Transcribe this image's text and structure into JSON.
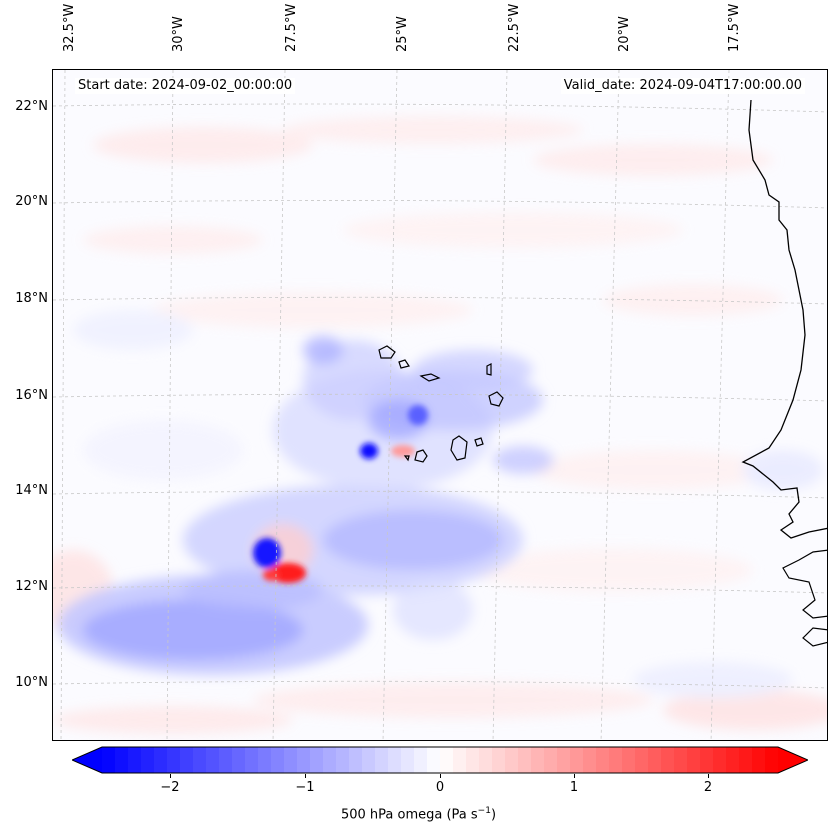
{
  "map": {
    "start_date": "Start date: 2024-09-02_00:00:00",
    "valid_date": "Valid_date: 2024-09-04T17:00:00.00",
    "lat_labels": [
      "22°N",
      "20°N",
      "18°N",
      "16°N",
      "14°N",
      "12°N",
      "10°N"
    ],
    "lon_labels": [
      "32.5°W",
      "30°W",
      "27.5°W",
      "25°W",
      "22.5°W",
      "20°W",
      "17.5°W"
    ],
    "gridlines": true,
    "features": [
      "Cape Verde islands",
      "West African coastline"
    ]
  },
  "colorbar": {
    "ticks": [
      "−2",
      "−1",
      "0",
      "1",
      "2"
    ],
    "range": [
      -2.6,
      2.6
    ],
    "label_prefix": "500 hPa omega (Pa s",
    "label_exponent": "−1",
    "label_suffix": ")",
    "colormap": "bwr",
    "colors": {
      "min": "#0000ff",
      "mid": "#ffffff",
      "max": "#ff0000"
    }
  },
  "chart_data": {
    "type": "heatmap",
    "title": "",
    "variable": "500 hPa omega",
    "units": "Pa s^-1",
    "xlabel": "",
    "ylabel": "",
    "lon_range": [
      "33°W",
      "16°W"
    ],
    "lat_range": [
      "9°N",
      "22.8°N"
    ],
    "colorbar_range": [
      -2.6,
      2.6
    ],
    "features": [
      {
        "name": "strong ascent core",
        "lon": -26.8,
        "lat": 12.5,
        "value": -2.6
      },
      {
        "name": "strong descent core",
        "lon": -26.3,
        "lat": 12.1,
        "value": 2.4
      },
      {
        "name": "ascent core near Cape Verde",
        "lon": -24.7,
        "lat": 14.9,
        "value": -2.4
      },
      {
        "name": "descent near Cape Verde",
        "lon": -24.3,
        "lat": 14.8,
        "value": 1.6
      },
      {
        "name": "ascent band (southwest)",
        "lon": -30.0,
        "lat": 11.2,
        "value": -1.2
      },
      {
        "name": "ascent band (central)",
        "lon": -24.0,
        "lat": 13.3,
        "value": -1.0
      },
      {
        "name": "ascent arc north of islands",
        "lon": -24.0,
        "lat": 16.2,
        "value": -0.8
      }
    ]
  }
}
